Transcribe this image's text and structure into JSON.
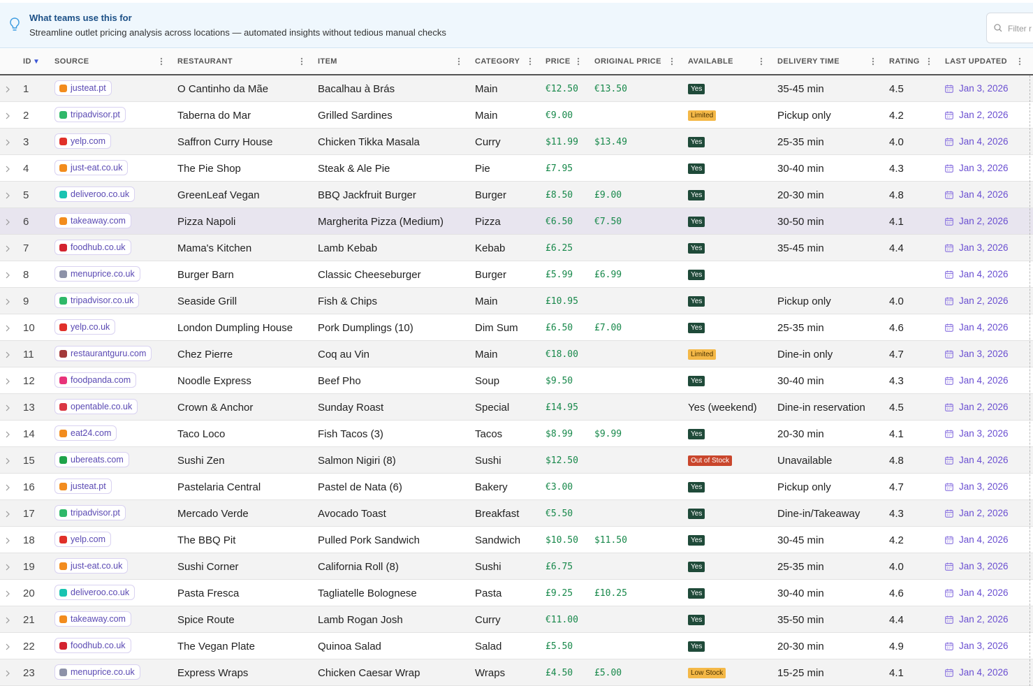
{
  "banner": {
    "title": "What teams use this for",
    "subtitle": "Streamline outlet pricing analysis across locations — automated insights without tedious manual checks"
  },
  "filter_placeholder": "Filter r",
  "table": {
    "columns": [
      "ID",
      "SOURCE",
      "RESTAURANT",
      "ITEM",
      "CATEGORY",
      "PRICE",
      "ORIGINAL PRICE",
      "AVAILABLE",
      "DELIVERY TIME",
      "RATING",
      "LAST UPDATED"
    ],
    "sort_indicator": "▼",
    "rows": [
      {
        "id": 1,
        "source": "justeat.pt",
        "source_color": "#f28c1e",
        "restaurant": "O Cantinho da Mãe",
        "item": "Bacalhau à Brás",
        "category": "Main",
        "price": "€12.50",
        "original_price": "€13.50",
        "available": {
          "text": "Yes",
          "badge": "#1f4a39",
          "badge_text": "#ffffff"
        },
        "delivery_time": "35-45 min",
        "rating": "4.5",
        "last_updated": "Jan 3, 2026"
      },
      {
        "id": 2,
        "source": "tripadvisor.pt",
        "source_color": "#2fb869",
        "restaurant": "Taberna do Mar",
        "item": "Grilled Sardines",
        "category": "Main",
        "price": "€9.00",
        "original_price": null,
        "available": {
          "text": "Limited",
          "badge": "#f4b847",
          "badge_text": "#4a3200"
        },
        "delivery_time": "Pickup only",
        "rating": "4.2",
        "last_updated": "Jan 2, 2026"
      },
      {
        "id": 3,
        "source": "yelp.com",
        "source_color": "#e0302a",
        "restaurant": "Saffron Curry House",
        "item": "Chicken Tikka Masala",
        "category": "Curry",
        "price": "$11.99",
        "original_price": "$13.49",
        "available": {
          "text": "Yes",
          "badge": "#1f4a39",
          "badge_text": "#ffffff"
        },
        "delivery_time": "25-35 min",
        "rating": "4.0",
        "last_updated": "Jan 4, 2026"
      },
      {
        "id": 4,
        "source": "just-eat.co.uk",
        "source_color": "#f28c1e",
        "restaurant": "The Pie Shop",
        "item": "Steak & Ale Pie",
        "category": "Pie",
        "price": "£7.95",
        "original_price": null,
        "available": {
          "text": "Yes",
          "badge": "#1f4a39",
          "badge_text": "#ffffff"
        },
        "delivery_time": "30-40 min",
        "rating": "4.3",
        "last_updated": "Jan 3, 2026"
      },
      {
        "id": 5,
        "source": "deliveroo.co.uk",
        "source_color": "#19c3b1",
        "restaurant": "GreenLeaf Vegan",
        "item": "BBQ Jackfruit Burger",
        "category": "Burger",
        "price": "£8.50",
        "original_price": "£9.00",
        "available": {
          "text": "Yes",
          "badge": "#1f4a39",
          "badge_text": "#ffffff"
        },
        "delivery_time": "20-30 min",
        "rating": "4.8",
        "last_updated": "Jan 4, 2026"
      },
      {
        "id": 6,
        "source": "takeaway.com",
        "source_color": "#f28c1e",
        "restaurant": "Pizza Napoli",
        "item": "Margherita Pizza (Medium)",
        "category": "Pizza",
        "price": "€6.50",
        "original_price": "€7.50",
        "available": {
          "text": "Yes",
          "badge": "#1f4a39",
          "badge_text": "#ffffff"
        },
        "delivery_time": "30-50 min",
        "rating": "4.1",
        "last_updated": "Jan 2, 2026",
        "highlighted": true
      },
      {
        "id": 7,
        "source": "foodhub.co.uk",
        "source_color": "#d3232f",
        "restaurant": "Mama's Kitchen",
        "item": "Lamb Kebab",
        "category": "Kebab",
        "price": "£6.25",
        "original_price": null,
        "available": {
          "text": "Yes",
          "badge": "#1f4a39",
          "badge_text": "#ffffff"
        },
        "delivery_time": "35-45 min",
        "rating": "4.4",
        "last_updated": "Jan 3, 2026"
      },
      {
        "id": 8,
        "source": "menuprice.co.uk",
        "source_color": "#8d92a8",
        "restaurant": "Burger Barn",
        "item": "Classic Cheeseburger",
        "category": "Burger",
        "price": "£5.99",
        "original_price": "£6.99",
        "available": {
          "text": "Yes",
          "badge": "#1f4a39",
          "badge_text": "#ffffff"
        },
        "delivery_time": null,
        "rating": null,
        "last_updated": "Jan 4, 2026"
      },
      {
        "id": 9,
        "source": "tripadvisor.co.uk",
        "source_color": "#2fb869",
        "restaurant": "Seaside Grill",
        "item": "Fish & Chips",
        "category": "Main",
        "price": "£10.95",
        "original_price": null,
        "available": {
          "text": "Yes",
          "badge": "#1f4a39",
          "badge_text": "#ffffff"
        },
        "delivery_time": "Pickup only",
        "rating": "4.0",
        "last_updated": "Jan 2, 2026"
      },
      {
        "id": 10,
        "source": "yelp.co.uk",
        "source_color": "#e0302a",
        "restaurant": "London Dumpling House",
        "item": "Pork Dumplings (10)",
        "category": "Dim Sum",
        "price": "£6.50",
        "original_price": "£7.00",
        "available": {
          "text": "Yes",
          "badge": "#1f4a39",
          "badge_text": "#ffffff"
        },
        "delivery_time": "25-35 min",
        "rating": "4.6",
        "last_updated": "Jan 4, 2026"
      },
      {
        "id": 11,
        "source": "restaurantguru.com",
        "source_color": "#a33a3a",
        "restaurant": "Chez Pierre",
        "item": "Coq au Vin",
        "category": "Main",
        "price": "€18.00",
        "original_price": null,
        "available": {
          "text": "Limited",
          "badge": "#f4b847",
          "badge_text": "#4a3200"
        },
        "delivery_time": "Dine-in only",
        "rating": "4.7",
        "last_updated": "Jan 3, 2026"
      },
      {
        "id": 12,
        "source": "foodpanda.com",
        "source_color": "#e8337a",
        "restaurant": "Noodle Express",
        "item": "Beef Pho",
        "category": "Soup",
        "price": "$9.50",
        "original_price": null,
        "available": {
          "text": "Yes",
          "badge": "#1f4a39",
          "badge_text": "#ffffff"
        },
        "delivery_time": "30-40 min",
        "rating": "4.3",
        "last_updated": "Jan 4, 2026"
      },
      {
        "id": 13,
        "source": "opentable.co.uk",
        "source_color": "#da3743",
        "restaurant": "Crown & Anchor",
        "item": "Sunday Roast",
        "category": "Special",
        "price": "£14.95",
        "original_price": null,
        "available": "Yes (weekend)",
        "delivery_time": "Dine-in reservation",
        "rating": "4.5",
        "last_updated": "Jan 2, 2026"
      },
      {
        "id": 14,
        "source": "eat24.com",
        "source_color": "#f28c1e",
        "restaurant": "Taco Loco",
        "item": "Fish Tacos (3)",
        "category": "Tacos",
        "price": "$8.99",
        "original_price": "$9.99",
        "available": {
          "text": "Yes",
          "badge": "#1f4a39",
          "badge_text": "#ffffff"
        },
        "delivery_time": "20-30 min",
        "rating": "4.1",
        "last_updated": "Jan 3, 2026"
      },
      {
        "id": 15,
        "source": "ubereats.com",
        "source_color": "#1fa34a",
        "restaurant": "Sushi Zen",
        "item": "Salmon Nigiri (8)",
        "category": "Sushi",
        "price": "$12.50",
        "original_price": null,
        "available": {
          "text": "Out of Stock",
          "badge": "#c9462c",
          "badge_text": "#ffffff"
        },
        "delivery_time": "Unavailable",
        "rating": "4.8",
        "last_updated": "Jan 4, 2026"
      },
      {
        "id": 16,
        "source": "justeat.pt",
        "source_color": "#f28c1e",
        "restaurant": "Pastelaria Central",
        "item": "Pastel de Nata (6)",
        "category": "Bakery",
        "price": "€3.00",
        "original_price": null,
        "available": {
          "text": "Yes",
          "badge": "#1f4a39",
          "badge_text": "#ffffff"
        },
        "delivery_time": "Pickup only",
        "rating": "4.7",
        "last_updated": "Jan 3, 2026"
      },
      {
        "id": 17,
        "source": "tripadvisor.pt",
        "source_color": "#2fb869",
        "restaurant": "Mercado Verde",
        "item": "Avocado Toast",
        "category": "Breakfast",
        "price": "€5.50",
        "original_price": null,
        "available": {
          "text": "Yes",
          "badge": "#1f4a39",
          "badge_text": "#ffffff"
        },
        "delivery_time": "Dine-in/Takeaway",
        "rating": "4.3",
        "last_updated": "Jan 2, 2026"
      },
      {
        "id": 18,
        "source": "yelp.com",
        "source_color": "#e0302a",
        "restaurant": "The BBQ Pit",
        "item": "Pulled Pork Sandwich",
        "category": "Sandwich",
        "price": "$10.50",
        "original_price": "$11.50",
        "available": {
          "text": "Yes",
          "badge": "#1f4a39",
          "badge_text": "#ffffff"
        },
        "delivery_time": "30-45 min",
        "rating": "4.2",
        "last_updated": "Jan 4, 2026"
      },
      {
        "id": 19,
        "source": "just-eat.co.uk",
        "source_color": "#f28c1e",
        "restaurant": "Sushi Corner",
        "item": "California Roll (8)",
        "category": "Sushi",
        "price": "£6.75",
        "original_price": null,
        "available": {
          "text": "Yes",
          "badge": "#1f4a39",
          "badge_text": "#ffffff"
        },
        "delivery_time": "25-35 min",
        "rating": "4.0",
        "last_updated": "Jan 3, 2026"
      },
      {
        "id": 20,
        "source": "deliveroo.co.uk",
        "source_color": "#19c3b1",
        "restaurant": "Pasta Fresca",
        "item": "Tagliatelle Bolognese",
        "category": "Pasta",
        "price": "£9.25",
        "original_price": "£10.25",
        "available": {
          "text": "Yes",
          "badge": "#1f4a39",
          "badge_text": "#ffffff"
        },
        "delivery_time": "30-40 min",
        "rating": "4.6",
        "last_updated": "Jan 4, 2026"
      },
      {
        "id": 21,
        "source": "takeaway.com",
        "source_color": "#f28c1e",
        "restaurant": "Spice Route",
        "item": "Lamb Rogan Josh",
        "category": "Curry",
        "price": "€11.00",
        "original_price": null,
        "available": {
          "text": "Yes",
          "badge": "#1f4a39",
          "badge_text": "#ffffff"
        },
        "delivery_time": "35-50 min",
        "rating": "4.4",
        "last_updated": "Jan 2, 2026"
      },
      {
        "id": 22,
        "source": "foodhub.co.uk",
        "source_color": "#d3232f",
        "restaurant": "The Vegan Plate",
        "item": "Quinoa Salad",
        "category": "Salad",
        "price": "£5.50",
        "original_price": null,
        "available": {
          "text": "Yes",
          "badge": "#1f4a39",
          "badge_text": "#ffffff"
        },
        "delivery_time": "20-30 min",
        "rating": "4.9",
        "last_updated": "Jan 3, 2026"
      },
      {
        "id": 23,
        "source": "menuprice.co.uk",
        "source_color": "#8d92a8",
        "restaurant": "Express Wraps",
        "item": "Chicken Caesar Wrap",
        "category": "Wraps",
        "price": "£4.50",
        "original_price": "£5.00",
        "available": {
          "text": "Low Stock",
          "badge": "#f4b847",
          "badge_text": "#4a3200"
        },
        "delivery_time": "15-25 min",
        "rating": "4.1",
        "last_updated": "Jan 4, 2026"
      }
    ]
  }
}
